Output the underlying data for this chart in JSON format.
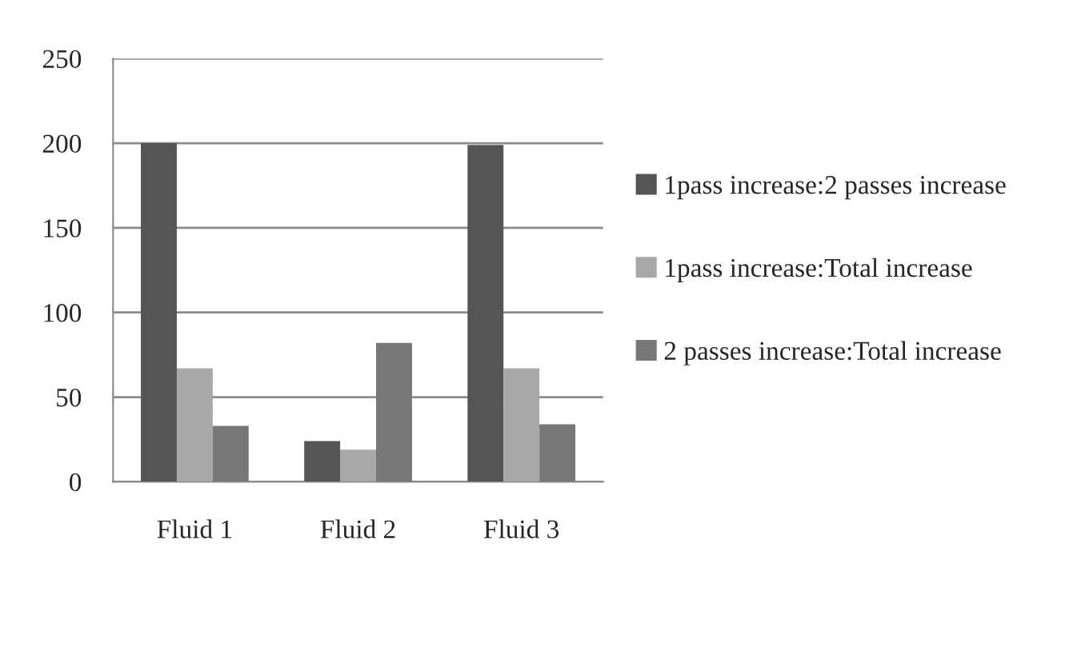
{
  "chart_data": {
    "type": "bar",
    "categories": [
      "Fluid 1",
      "Fluid 2",
      "Fluid 3"
    ],
    "series": [
      {
        "name": "1pass increase:2 passes increase",
        "color": "#555555",
        "values": [
          200,
          24,
          199
        ]
      },
      {
        "name": "1pass increase:Total increase",
        "color": "#a8a8a8",
        "values": [
          67,
          19,
          67
        ]
      },
      {
        "name": "2 passes increase:Total increase",
        "color": "#777777",
        "values": [
          33,
          82,
          34
        ]
      }
    ],
    "ylim": [
      0,
      250
    ],
    "yticks": [
      0,
      50,
      100,
      150,
      200,
      250
    ],
    "grid": "y",
    "legend": "right"
  }
}
